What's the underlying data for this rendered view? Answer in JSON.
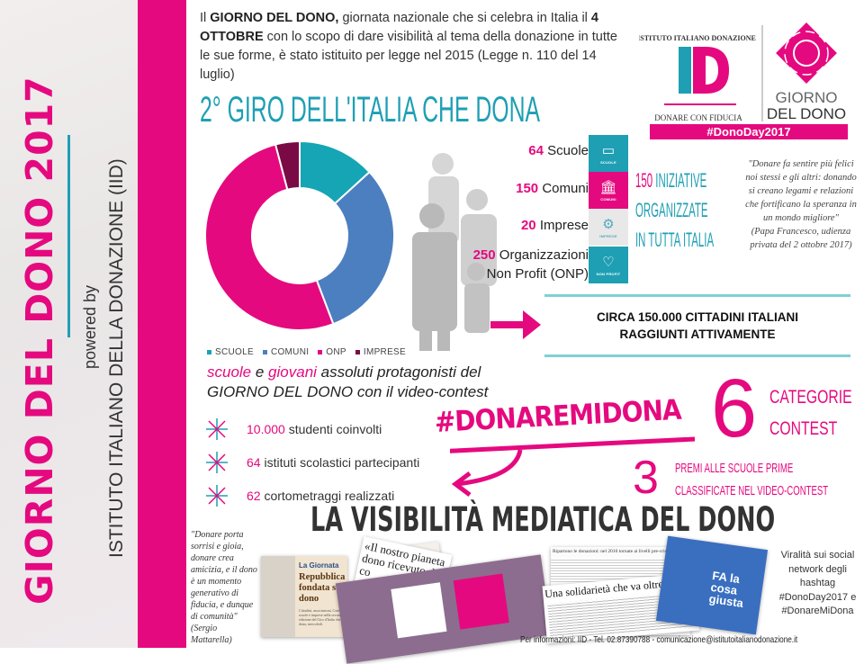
{
  "sidebar": {
    "title": "GIORNO DEL DONO 2017",
    "powered_by": "powered by",
    "institute": "ISTITUTO ITALIANO DELLA DONAZIONE (IID)"
  },
  "intro": {
    "p1": "Il ",
    "b1": "GIORNO DEL DONO,",
    "p2": " giornata nazionale che si celebra in Italia il ",
    "b2": "4 OTTOBRE",
    "p3": " con lo scopo di dare visibilità al tema della donazione in tutte le sue forme, è stato istituito per legge nel 2015 (Legge n. 110 del 14 luglio)"
  },
  "section_title": "2° GIRO DELL'ITALIA CHE DONA",
  "logo": {
    "iid_arc": "ISTITUTO ITALIANO DONAZIONE",
    "iid_letters": "ID",
    "iid_motto": "DONARE CON FIDUCIA",
    "gdd_line1": "GIORNO",
    "gdd_line2": "DEL DONO",
    "hashtag": "#DonoDay2017"
  },
  "stats": [
    {
      "num": "64",
      "label": "Scuole",
      "icon": "book-icon",
      "tag": "SCUOLE",
      "color": "#1e9fb4"
    },
    {
      "num": "150",
      "label": "Comuni",
      "icon": "town-hall-icon",
      "tag": "COMUNI",
      "color": "#e5097f"
    },
    {
      "num": "20",
      "label": "Imprese",
      "icon": "gears-icon",
      "tag": "IMPRESE",
      "color": "#e8e8e8"
    },
    {
      "num": "250",
      "label": "Organizzazioni Non Profit (ONP)",
      "icon": "heart-icon",
      "tag": "NON PROFIT",
      "color": "#1e9fb4"
    }
  ],
  "initiatives": {
    "num": "150",
    "l1": " INIZIATIVE",
    "l2": "ORGANIZZATE",
    "l3": "IN TUTTA ITALIA"
  },
  "papa_quote": {
    "text": "\"Donare fa sentire più felici noi stessi e gli altri: donando si creano legami e relazioni che fortificano la speranza in un mondo migliore\"",
    "source": "(Papa Francesco, udienza privata del 2 ottobre 2017)"
  },
  "reach": {
    "l1": "CIRCA 150.000 CITTADINI ITALIANI",
    "l2": "RAGGIUNTI ATTIVAMENTE"
  },
  "chart_data": {
    "type": "pie",
    "donut": true,
    "categories": [
      "SCUOLE",
      "COMUNI",
      "ONP",
      "IMPRESE"
    ],
    "values": [
      64,
      150,
      250,
      20
    ],
    "colors": [
      "#15a5b5",
      "#4c7fc0",
      "#e5097f",
      "#7a0a45"
    ],
    "legend": "bottom"
  },
  "contest": {
    "s1": "scuole",
    "s2": " e ",
    "s3": "giovani",
    "s4": " assoluti protagonisti del ",
    "s5": "GIORNO DEL DONO",
    "s6": " con il video-contest"
  },
  "bullets": [
    {
      "num": "10.000",
      "text": " studenti coinvolti"
    },
    {
      "num": "64",
      "text": " istituti scolastici partecipanti"
    },
    {
      "num": "62",
      "text": " cortometraggi realizzati"
    }
  ],
  "hashtag": "#DONAREMIDONA",
  "categories": {
    "num": "6",
    "l1": "CATEGORIE",
    "l2": "CONTEST"
  },
  "prizes": {
    "num": "3",
    "l1": "PREMI ALLE SCUOLE PRIME",
    "l2": "CLASSIFICATE NEL VIDEO-CONTEST"
  },
  "media_title": "LA VISIBILITÀ MEDIATICA DEL DONO",
  "mattarella_quote": {
    "text": "\"Donare porta sorrisi e gioia, donare crea amicizia, e il dono è un momento generativo di fiducia, e dunque di comunità\"",
    "source": "(Sergio Mattarella)"
  },
  "clips": {
    "c1_kicker": "La Giornata",
    "c1_head": "Repubblica fondata sul dono",
    "c1_body": "Cittadini, associazioni, Comuni, scuole e imprese nella seconda edizione del Giro d'Italia che dona, mercoledì.",
    "c2_head": "«Il nostro pianeta dono ricevuto da co",
    "c3_kicker": "Ripartono le donazioni: nel 2016 tornate ai livelli pre-crisi",
    "c3_head": "Una solidarietà che va oltre le emergenze",
    "c4_text": "FA la cosa giusta"
  },
  "virality": "Viralità sui social network degli hashtag #DonoDay2017 e #DonareMiDona",
  "footer": "Per informazioni: IID - Tel. 02.87390788 - comunicazione@istitutoitalianodonazione.it"
}
